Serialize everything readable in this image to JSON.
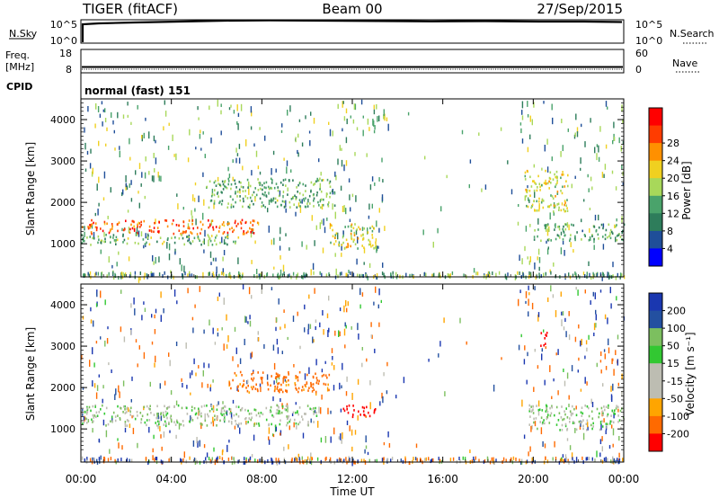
{
  "header": {
    "station": "TIGER (fitACF)",
    "beam": "Beam 00",
    "date": "27/Sep/2015"
  },
  "top_panels": {
    "nsky": {
      "label": "N.Sky",
      "ticks": [
        "10^5",
        "10^0"
      ]
    },
    "nsearch": {
      "label": "N.Search",
      "ticks": [
        "10^5",
        "10^0"
      ],
      "style": "dotted"
    },
    "freq": {
      "label_line1": "Freq.",
      "label_line2": "[MHz]",
      "ticks": [
        "18",
        "8"
      ]
    },
    "nave": {
      "label": "Nave",
      "ticks": [
        "60",
        "0"
      ],
      "style": "dotted"
    },
    "cpid": {
      "label": "CPID",
      "value": "normal (fast) 151"
    }
  },
  "colors": {
    "power_scale": [
      "#0000ff",
      "#1f4e99",
      "#2e7d5b",
      "#4aa36b",
      "#a8d85a",
      "#f0d020",
      "#ff9000",
      "#ff3c00",
      "#ff0000"
    ],
    "velocity_scale": [
      "#ff0000",
      "#ff6a00",
      "#ffa500",
      "#bdbdb2",
      "#bdbdb2",
      "#32c832",
      "#7cbf5f",
      "#2350a0",
      "#1a37b0"
    ]
  },
  "chart_data": [
    {
      "type": "heatmap",
      "panel": "power",
      "ylabel": "Slant Range [km]",
      "xlabel": "Time UT",
      "x_ticks": [
        "00:00",
        "04:00",
        "08:00",
        "12:00",
        "16:00",
        "20:00",
        "00:00"
      ],
      "x_range_hours": [
        0,
        24
      ],
      "y_ticks": [
        1000,
        2000,
        3000,
        4000
      ],
      "ylim": [
        200,
        4500
      ],
      "colorbar": {
        "label": "Power [dB]",
        "ticks": [
          4,
          8,
          12,
          16,
          20,
          24,
          28
        ],
        "range": [
          0,
          32
        ]
      },
      "regions": [
        {
          "t0": 0.0,
          "t1": 7.8,
          "r0": 1250,
          "r1": 1600,
          "value": 26
        },
        {
          "t0": 0.0,
          "t1": 7.0,
          "r0": 1000,
          "r1": 1250,
          "value": 14
        },
        {
          "t0": 5.5,
          "t1": 11.2,
          "r0": 1900,
          "r1": 2600,
          "value": 13
        },
        {
          "t0": 11.0,
          "t1": 13.0,
          "r0": 900,
          "r1": 1500,
          "value": 18
        },
        {
          "t0": 19.6,
          "t1": 21.5,
          "r0": 1800,
          "r1": 2800,
          "value": 18
        },
        {
          "t0": 20.0,
          "t1": 24.0,
          "r0": 1100,
          "r1": 1500,
          "value": 12
        }
      ]
    },
    {
      "type": "heatmap",
      "panel": "velocity",
      "ylabel": "Slant Range [km]",
      "xlabel": "Time UT",
      "x_ticks": [
        "00:00",
        "04:00",
        "08:00",
        "12:00",
        "16:00",
        "20:00",
        "00:00"
      ],
      "x_range_hours": [
        0,
        24
      ],
      "y_ticks": [
        1000,
        2000,
        3000,
        4000
      ],
      "ylim": [
        200,
        4500
      ],
      "colorbar": {
        "label": "Velocity [m s⁻¹]",
        "ticks": [
          "200",
          "100",
          "50",
          "15",
          "-15",
          "-50",
          "-100",
          "-200"
        ]
      },
      "regions": [
        {
          "t0": 0.0,
          "t1": 10.5,
          "r0": 1100,
          "r1": 1600,
          "value": 0
        },
        {
          "t0": 6.5,
          "t1": 11.0,
          "r0": 1900,
          "r1": 2400,
          "value": -120
        },
        {
          "t0": 11.5,
          "t1": 13.0,
          "r0": 1300,
          "r1": 1600,
          "value": -220
        },
        {
          "t0": 19.8,
          "t1": 24.0,
          "r0": 1000,
          "r1": 1600,
          "value": 0
        },
        {
          "t0": 20.3,
          "t1": 20.6,
          "r0": 3000,
          "r1": 3500,
          "value": -220
        }
      ]
    }
  ]
}
